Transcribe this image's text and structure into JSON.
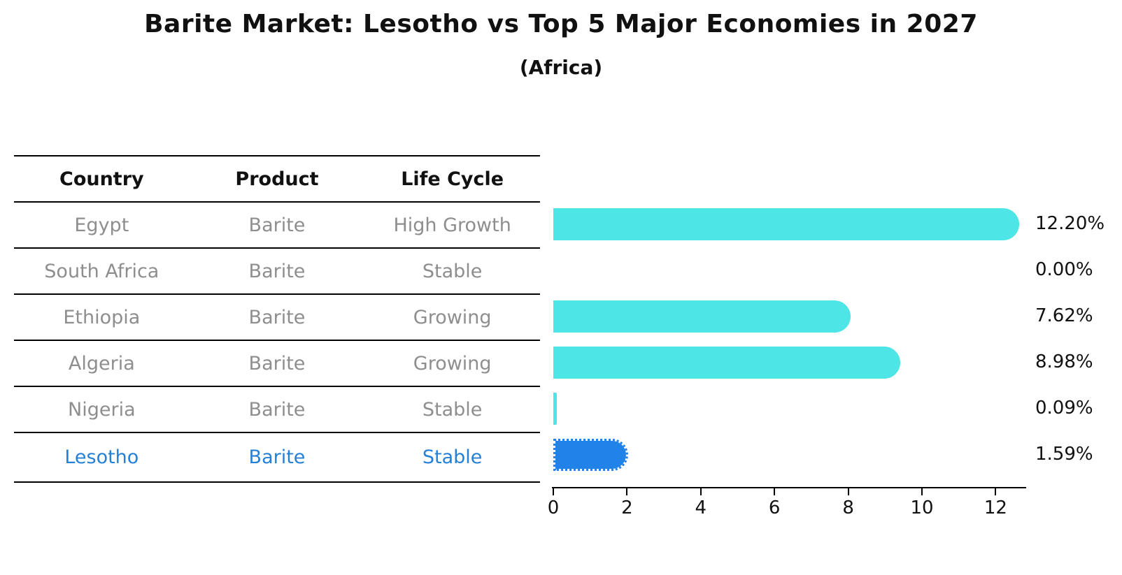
{
  "title": "Barite Market: Lesotho vs Top 5 Major Economies in 2027",
  "subtitle": "(Africa)",
  "colors": {
    "bar_default": "#4de5e5",
    "bar_highlight": "#2182e8",
    "highlight_text": "#2580d6",
    "table_text": "#8e8e8e",
    "heading_text": "#111111"
  },
  "table": {
    "headers": [
      "Country",
      "Product",
      "Life Cycle"
    ],
    "rows": [
      {
        "country": "Egypt",
        "product": "Barite",
        "life_cycle": "High Growth",
        "highlighted": false
      },
      {
        "country": "South Africa",
        "product": "Barite",
        "life_cycle": "Stable",
        "highlighted": false
      },
      {
        "country": "Ethiopia",
        "product": "Barite",
        "life_cycle": "Growing",
        "highlighted": false
      },
      {
        "country": "Algeria",
        "product": "Barite",
        "life_cycle": "Growing",
        "highlighted": false
      },
      {
        "country": "Nigeria",
        "product": "Barite",
        "life_cycle": "Stable",
        "highlighted": false
      },
      {
        "country": "Lesotho",
        "product": "Barite",
        "life_cycle": "Stable",
        "highlighted": true
      }
    ]
  },
  "chart_data": {
    "type": "bar",
    "orientation": "horizontal",
    "title": "Barite Market: Lesotho vs Top 5 Major Economies in 2027",
    "subtitle": "(Africa)",
    "categories": [
      "Egypt",
      "South Africa",
      "Ethiopia",
      "Algeria",
      "Nigeria",
      "Lesotho"
    ],
    "values": [
      12.2,
      0.0,
      7.62,
      8.98,
      0.09,
      1.59
    ],
    "value_labels": [
      "12.20%",
      "0.00%",
      "7.62%",
      "8.98%",
      "0.09%",
      "1.59%"
    ],
    "highlight_category": "Lesotho",
    "x_ticks": [
      0,
      2,
      4,
      6,
      8,
      10,
      12
    ],
    "xlim": [
      0,
      12.8
    ],
    "xlabel": "",
    "ylabel": "",
    "grid": false,
    "legend": false,
    "unit": "percent"
  }
}
